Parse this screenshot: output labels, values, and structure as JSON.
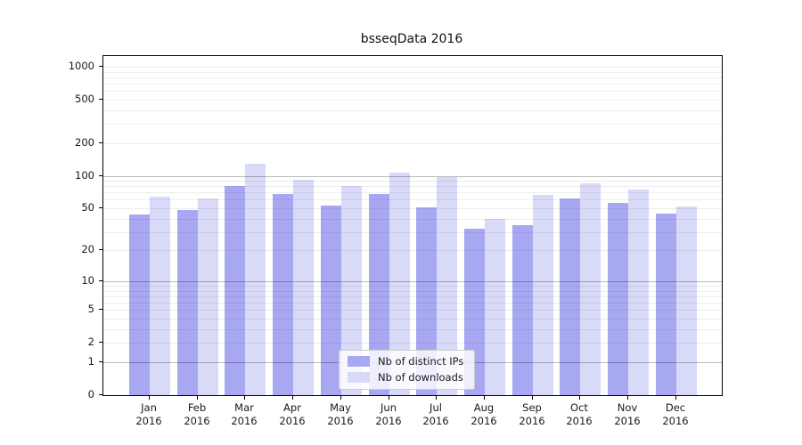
{
  "title": "bsseqData 2016",
  "chart_data": {
    "type": "bar",
    "categories": [
      "Jan",
      "Feb",
      "Mar",
      "Apr",
      "May",
      "Jun",
      "Jul",
      "Aug",
      "Sep",
      "Oct",
      "Nov",
      "Dec"
    ],
    "year": "2016",
    "series": [
      {
        "name": "Nb of distinct IPs",
        "color": "#a8a8f2",
        "values": [
          44,
          48,
          80,
          68,
          53,
          68,
          51,
          32,
          35,
          62,
          56,
          45
        ]
      },
      {
        "name": "Nb of downloads",
        "color": "#d9d9f8",
        "values": [
          64,
          62,
          130,
          92,
          80,
          106,
          97,
          40,
          66,
          85,
          75,
          52
        ]
      }
    ],
    "title": "bsseqData 2016",
    "xlabel": "",
    "ylabel": "",
    "yscale": "log1p",
    "ylim": [
      0,
      1000
    ],
    "yticks": [
      0,
      1,
      2,
      5,
      10,
      20,
      50,
      100,
      200,
      500,
      1000
    ],
    "grid": {
      "major": [
        1,
        10,
        100
      ],
      "minor": [
        2,
        3,
        4,
        5,
        6,
        7,
        8,
        9,
        20,
        30,
        40,
        50,
        60,
        70,
        80,
        90,
        200,
        300,
        400,
        500,
        600,
        700,
        800,
        900,
        1000
      ]
    },
    "legend_position": "bottom-center"
  }
}
